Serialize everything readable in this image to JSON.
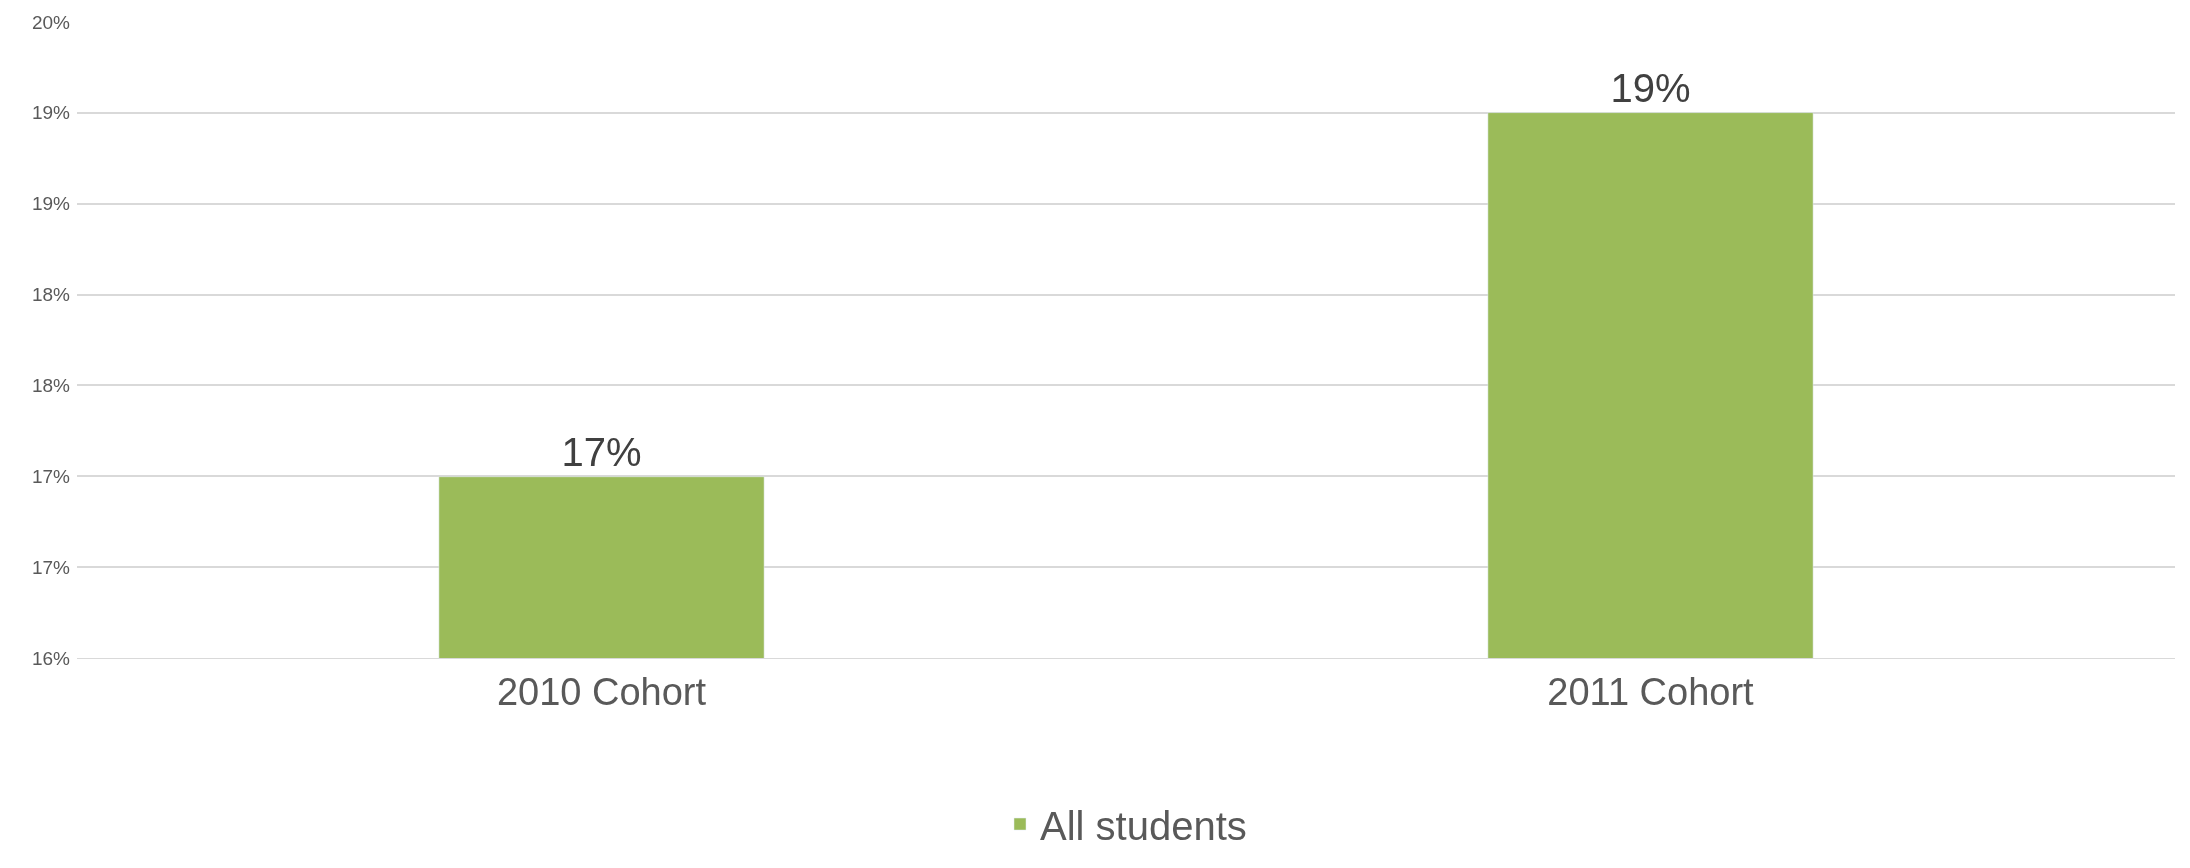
{
  "chart_data": {
    "type": "bar",
    "categories": [
      "2010 Cohort",
      "2011 Cohort"
    ],
    "series": [
      {
        "name": "All students",
        "color": "#9bbb59",
        "values": [
          17.14,
          19.43
        ],
        "value_labels": [
          "17%",
          "19%"
        ]
      }
    ],
    "ylim": [
      16,
      20
    ],
    "yticks": [
      {
        "value": 16,
        "label": "16%"
      },
      {
        "value": 16.571,
        "label": "17%"
      },
      {
        "value": 17.143,
        "label": "17%"
      },
      {
        "value": 17.714,
        "label": "18%"
      },
      {
        "value": 18.286,
        "label": "18%"
      },
      {
        "value": 18.857,
        "label": "19%"
      },
      {
        "value": 19.429,
        "label": "19%"
      },
      {
        "value": 20,
        "label": "20%"
      }
    ],
    "grid": "y",
    "legend": "bottom"
  }
}
